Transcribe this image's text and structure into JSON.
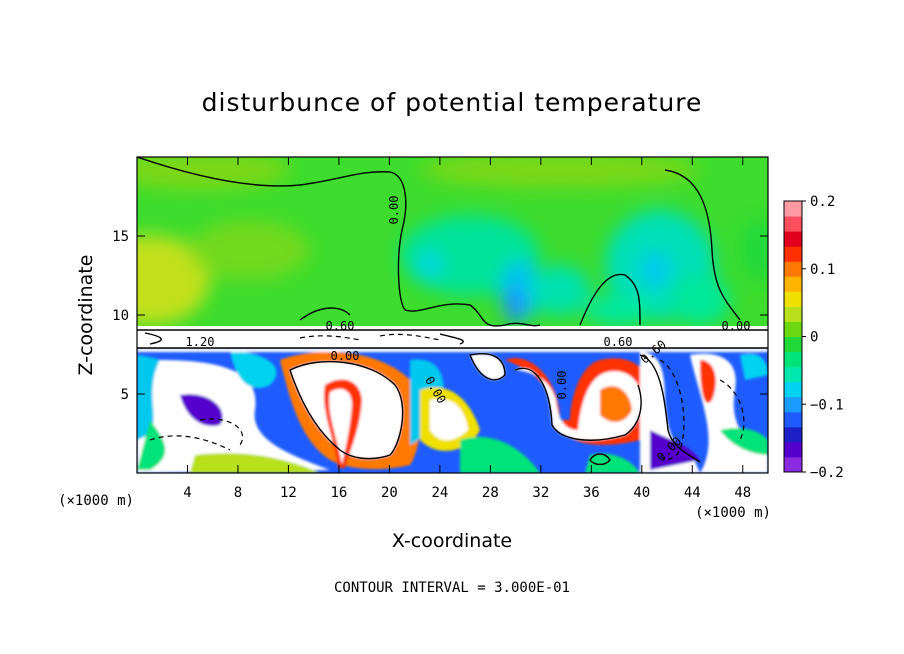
{
  "chart_data": {
    "type": "heatmap",
    "title": "disturbunce of potential temperature",
    "xlabel": "X-coordinate",
    "ylabel": "Z-coordinate",
    "x_unit": "(×1000 m)",
    "x_unit_right": "(×1000 m)",
    "xlim": [
      0,
      50
    ],
    "ylim": [
      0,
      20
    ],
    "x_ticks": [
      "4",
      "8",
      "12",
      "16",
      "20",
      "24",
      "28",
      "32",
      "36",
      "40",
      "44",
      "48"
    ],
    "y_ticks": [
      "5",
      "10",
      "15"
    ],
    "colorbar": {
      "range": [
        -0.2,
        0.2
      ],
      "tick_labels": [
        "0.2",
        "0.1",
        "0",
        "−0.1",
        "−0.2"
      ],
      "colors": [
        "#8a2be2",
        "#5500cc",
        "#1f1fc8",
        "#1e5cff",
        "#1c9bff",
        "#00d2f0",
        "#00e8b0",
        "#00e27a",
        "#22d93a",
        "#6bd812",
        "#b8e01c",
        "#f0e000",
        "#ffb400",
        "#ff7800",
        "#ff3000",
        "#e0001e",
        "#ff4f5f",
        "#ff9aa2"
      ]
    },
    "contour_labels": [
      "0.00",
      "0.00",
      "1.20",
      "0.60",
      "0.00",
      "0.00",
      "0.00",
      "0.60",
      "0.60",
      "0.00"
    ],
    "annotation": "CONTOUR INTERVAL = 3.000E-01"
  }
}
